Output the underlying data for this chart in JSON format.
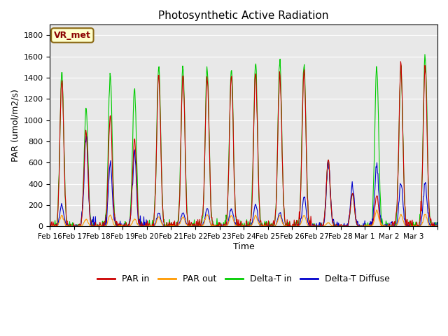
{
  "title": "Photosynthetic Active Radiation",
  "ylabel": "PAR (umol/m2/s)",
  "xlabel": "Time",
  "ylim": [
    0,
    1900
  ],
  "yticks": [
    0,
    200,
    400,
    600,
    800,
    1000,
    1200,
    1400,
    1600,
    1800
  ],
  "background_color": "#e8e8e8",
  "legend_label": "VR_met",
  "colors": {
    "PAR_in": "#cc0000",
    "PAR_out": "#ff9900",
    "Delta_T_in": "#00cc00",
    "Delta_T_Diffuse": "#0000cc"
  },
  "x_tick_labels": [
    "Feb 16",
    "Feb 17",
    "Feb 18",
    "Feb 19",
    "Feb 20",
    "Feb 21",
    "Feb 22",
    "Feb 23",
    "Feb 24",
    "Feb 25",
    "Feb 26",
    "Feb 27",
    "Feb 28",
    "Mar 1",
    "Mar 2",
    "Mar 3"
  ],
  "n_days": 16,
  "points_per_day": 48,
  "par_in_peaks": [
    1400,
    900,
    1050,
    820,
    1430,
    1430,
    1430,
    1440,
    1450,
    1450,
    1470,
    630,
    310,
    290,
    1520,
    1520
  ],
  "par_out_peaks": [
    100,
    70,
    110,
    70,
    90,
    90,
    110,
    100,
    100,
    100,
    100,
    35,
    0,
    150,
    110,
    110
  ],
  "delta_t_in_peaks": [
    1440,
    1100,
    1440,
    1300,
    1500,
    1500,
    1500,
    1500,
    1540,
    1560,
    1560,
    620,
    310,
    1500,
    1500,
    1640
  ],
  "delta_diff_peaks": [
    200,
    840,
    590,
    710,
    130,
    130,
    170,
    170,
    200,
    130,
    280,
    610,
    380,
    590,
    410,
    410
  ]
}
